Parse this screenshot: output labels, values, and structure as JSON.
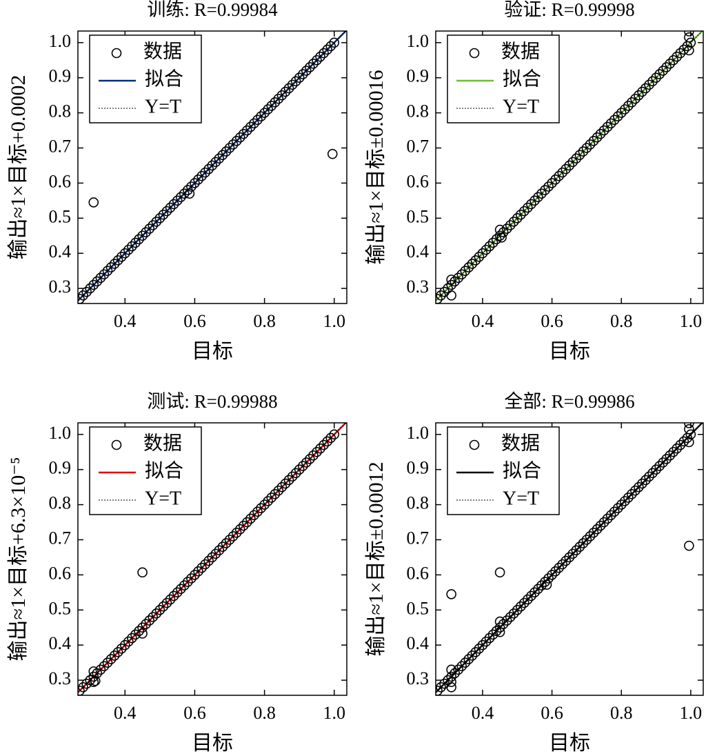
{
  "chart_data": [
    {
      "type": "scatter",
      "title": "训练: R=0.99984",
      "xlabel": "目标",
      "ylabel": "输出≈1×目标+0.0002",
      "xlim": [
        0.265,
        1.036
      ],
      "ylim": [
        0.257,
        1.033
      ],
      "xticks": [
        0.4,
        0.6,
        0.8,
        {
          "value": 1,
          "label": "1.0"
        }
      ],
      "yticks": [
        0.3,
        0.4,
        0.5,
        0.6,
        0.7,
        0.8,
        0.9,
        {
          "value": 1,
          "label": "1.0"
        }
      ],
      "series": [
        {
          "name": "数据",
          "color": "#000000",
          "marker": "circle",
          "x": [
            0.31,
            0.585,
            0.995,
            0.27,
            0.28,
            0.29,
            0.3,
            0.31,
            0.32,
            0.33,
            0.34,
            0.35,
            0.36,
            0.37,
            0.38,
            0.39,
            0.4,
            0.41,
            0.42,
            0.43,
            0.44,
            0.45,
            0.46,
            0.47,
            0.48,
            0.49,
            0.5,
            0.51,
            0.52,
            0.53,
            0.54,
            0.55,
            0.56,
            0.57,
            0.58,
            0.59,
            0.6,
            0.61,
            0.62,
            0.63,
            0.64,
            0.65,
            0.66,
            0.67,
            0.68,
            0.69,
            0.7,
            0.71,
            0.72,
            0.73,
            0.74,
            0.75,
            0.76,
            0.77,
            0.78,
            0.79,
            0.8,
            0.81,
            0.82,
            0.83,
            0.84,
            0.85,
            0.86,
            0.87,
            0.88,
            0.89,
            0.9,
            0.91,
            0.92,
            0.93,
            0.94,
            0.95,
            0.96,
            0.97,
            0.98,
            0.99,
            1.0
          ],
          "y": [
            0.545,
            0.57,
            0.683,
            0.27,
            0.28,
            0.29,
            0.3,
            0.31,
            0.32,
            0.33,
            0.34,
            0.35,
            0.36,
            0.37,
            0.38,
            0.39,
            0.4,
            0.41,
            0.42,
            0.43,
            0.44,
            0.45,
            0.46,
            0.47,
            0.48,
            0.49,
            0.5,
            0.51,
            0.52,
            0.53,
            0.54,
            0.55,
            0.56,
            0.57,
            0.58,
            0.59,
            0.6,
            0.61,
            0.62,
            0.63,
            0.64,
            0.65,
            0.66,
            0.67,
            0.68,
            0.69,
            0.7,
            0.71,
            0.72,
            0.73,
            0.74,
            0.75,
            0.76,
            0.77,
            0.78,
            0.79,
            0.8,
            0.81,
            0.82,
            0.83,
            0.84,
            0.85,
            0.86,
            0.87,
            0.88,
            0.89,
            0.9,
            0.91,
            0.92,
            0.93,
            0.94,
            0.95,
            0.96,
            0.97,
            0.98,
            0.99,
            1.0
          ]
        },
        {
          "name": "拟合",
          "color": "#002a80",
          "x": [
            0.265,
            1.036
          ],
          "y": [
            0.265,
            1.036
          ]
        },
        {
          "name": "Y=T",
          "color": "#000000",
          "dash": true,
          "x": [
            0.265,
            1.036
          ],
          "y": [
            0.265,
            1.036
          ]
        }
      ]
    },
    {
      "type": "scatter",
      "title": "验证: R=0.99998",
      "xlabel": "目标",
      "ylabel": "输出≈1×目标±0.00016",
      "xlim": [
        0.265,
        1.036
      ],
      "ylim": [
        0.257,
        1.033
      ],
      "xticks": [
        0.4,
        0.6,
        0.8,
        {
          "value": 1,
          "label": "1.0"
        }
      ],
      "yticks": [
        0.3,
        0.4,
        0.5,
        0.6,
        0.7,
        0.8,
        0.9,
        {
          "value": 1,
          "label": "1.0"
        }
      ],
      "series": [
        {
          "name": "数据",
          "color": "#000000",
          "marker": "circle",
          "x": [
            0.995,
            0.995,
            0.995,
            0.31,
            0.31,
            0.45,
            0.455,
            0.27,
            0.28,
            0.29,
            0.3,
            0.31,
            0.32,
            0.33,
            0.34,
            0.35,
            0.36,
            0.37,
            0.38,
            0.39,
            0.4,
            0.41,
            0.42,
            0.43,
            0.44,
            0.45,
            0.46,
            0.47,
            0.48,
            0.49,
            0.5,
            0.51,
            0.52,
            0.53,
            0.54,
            0.55,
            0.56,
            0.57,
            0.58,
            0.59,
            0.6,
            0.61,
            0.62,
            0.63,
            0.64,
            0.65,
            0.66,
            0.67,
            0.68,
            0.69,
            0.7,
            0.71,
            0.72,
            0.73,
            0.74,
            0.75,
            0.76,
            0.77,
            0.78,
            0.79,
            0.8,
            0.81,
            0.82,
            0.83,
            0.84,
            0.85,
            0.86,
            0.87,
            0.88,
            0.89,
            0.9,
            0.91,
            0.92,
            0.93,
            0.94,
            0.95,
            0.96,
            0.97,
            0.98,
            0.99,
            1.0
          ],
          "y": [
            1.032,
            1.015,
            0.978,
            0.325,
            0.28,
            0.467,
            0.445,
            0.27,
            0.28,
            0.29,
            0.3,
            0.31,
            0.32,
            0.33,
            0.34,
            0.35,
            0.36,
            0.37,
            0.38,
            0.39,
            0.4,
            0.41,
            0.42,
            0.43,
            0.44,
            0.45,
            0.46,
            0.47,
            0.48,
            0.49,
            0.5,
            0.51,
            0.52,
            0.53,
            0.54,
            0.55,
            0.56,
            0.57,
            0.58,
            0.59,
            0.6,
            0.61,
            0.62,
            0.63,
            0.64,
            0.65,
            0.66,
            0.67,
            0.68,
            0.69,
            0.7,
            0.71,
            0.72,
            0.73,
            0.74,
            0.75,
            0.76,
            0.77,
            0.78,
            0.79,
            0.8,
            0.81,
            0.82,
            0.83,
            0.84,
            0.85,
            0.86,
            0.87,
            0.88,
            0.89,
            0.9,
            0.91,
            0.92,
            0.93,
            0.94,
            0.95,
            0.96,
            0.97,
            0.98,
            0.99,
            1.0
          ]
        },
        {
          "name": "拟合",
          "color": "#6bbf2e",
          "x": [
            0.265,
            1.036
          ],
          "y": [
            0.265,
            1.036
          ]
        },
        {
          "name": "Y=T",
          "color": "#000000",
          "dash": true,
          "x": [
            0.265,
            1.036
          ],
          "y": [
            0.265,
            1.036
          ]
        }
      ]
    },
    {
      "type": "scatter",
      "title": "测试: R=0.99988",
      "xlabel": "目标",
      "ylabel": "输出≈1×目标+6.3×10⁻⁵",
      "xlim": [
        0.265,
        1.036
      ],
      "ylim": [
        0.257,
        1.033
      ],
      "xticks": [
        0.4,
        0.6,
        0.8,
        {
          "value": 1,
          "label": "1.0"
        }
      ],
      "yticks": [
        0.3,
        0.4,
        0.5,
        0.6,
        0.7,
        0.8,
        0.9,
        {
          "value": 1,
          "label": "1.0"
        }
      ],
      "series": [
        {
          "name": "数据",
          "color": "#000000",
          "marker": "circle",
          "x": [
            0.45,
            0.45,
            0.31,
            0.31,
            0.315,
            0.27,
            0.28,
            0.29,
            0.3,
            0.31,
            0.32,
            0.33,
            0.34,
            0.35,
            0.36,
            0.37,
            0.38,
            0.39,
            0.4,
            0.41,
            0.42,
            0.43,
            0.44,
            0.45,
            0.46,
            0.47,
            0.48,
            0.49,
            0.5,
            0.51,
            0.52,
            0.53,
            0.54,
            0.55,
            0.56,
            0.57,
            0.58,
            0.59,
            0.6,
            0.61,
            0.62,
            0.63,
            0.64,
            0.65,
            0.66,
            0.67,
            0.68,
            0.69,
            0.7,
            0.71,
            0.72,
            0.73,
            0.74,
            0.75,
            0.76,
            0.77,
            0.78,
            0.79,
            0.8,
            0.81,
            0.82,
            0.83,
            0.84,
            0.85,
            0.86,
            0.87,
            0.88,
            0.89,
            0.9,
            0.91,
            0.92,
            0.93,
            0.94,
            0.95,
            0.96,
            0.97,
            0.98,
            0.99,
            1.0
          ],
          "y": [
            0.607,
            0.433,
            0.325,
            0.295,
            0.298,
            0.27,
            0.28,
            0.29,
            0.3,
            0.31,
            0.32,
            0.33,
            0.34,
            0.35,
            0.36,
            0.37,
            0.38,
            0.39,
            0.4,
            0.41,
            0.42,
            0.43,
            0.44,
            0.45,
            0.46,
            0.47,
            0.48,
            0.49,
            0.5,
            0.51,
            0.52,
            0.53,
            0.54,
            0.55,
            0.56,
            0.57,
            0.58,
            0.59,
            0.6,
            0.61,
            0.62,
            0.63,
            0.64,
            0.65,
            0.66,
            0.67,
            0.68,
            0.69,
            0.7,
            0.71,
            0.72,
            0.73,
            0.74,
            0.75,
            0.76,
            0.77,
            0.78,
            0.79,
            0.8,
            0.81,
            0.82,
            0.83,
            0.84,
            0.85,
            0.86,
            0.87,
            0.88,
            0.89,
            0.9,
            0.91,
            0.92,
            0.93,
            0.94,
            0.95,
            0.96,
            0.97,
            0.98,
            0.99,
            1.0
          ]
        },
        {
          "name": "拟合",
          "color": "#e00000",
          "x": [
            0.265,
            1.036
          ],
          "y": [
            0.265,
            1.036
          ]
        },
        {
          "name": "Y=T",
          "color": "#000000",
          "dash": true,
          "x": [
            0.265,
            1.036
          ],
          "y": [
            0.265,
            1.036
          ]
        }
      ]
    },
    {
      "type": "scatter",
      "title": "全部: R=0.99986",
      "xlabel": "目标",
      "ylabel": "输出≈1×目标±0.00012",
      "xlim": [
        0.265,
        1.036
      ],
      "ylim": [
        0.257,
        1.033
      ],
      "xticks": [
        0.4,
        0.6,
        0.8,
        {
          "value": 1,
          "label": "1.0"
        }
      ],
      "yticks": [
        0.3,
        0.4,
        0.5,
        0.6,
        0.7,
        0.8,
        0.9,
        {
          "value": 1,
          "label": "1.0"
        }
      ],
      "series": [
        {
          "name": "数据",
          "color": "#000000",
          "marker": "circle",
          "x": [
            0.31,
            0.585,
            0.995,
            0.995,
            0.995,
            0.995,
            0.31,
            0.31,
            0.45,
            0.45,
            0.45,
            0.31,
            0.27,
            0.28,
            0.29,
            0.3,
            0.31,
            0.32,
            0.33,
            0.34,
            0.35,
            0.36,
            0.37,
            0.38,
            0.39,
            0.4,
            0.41,
            0.42,
            0.43,
            0.44,
            0.45,
            0.46,
            0.47,
            0.48,
            0.49,
            0.5,
            0.51,
            0.52,
            0.53,
            0.54,
            0.55,
            0.56,
            0.57,
            0.58,
            0.59,
            0.6,
            0.61,
            0.62,
            0.63,
            0.64,
            0.65,
            0.66,
            0.67,
            0.68,
            0.69,
            0.7,
            0.71,
            0.72,
            0.73,
            0.74,
            0.75,
            0.76,
            0.77,
            0.78,
            0.79,
            0.8,
            0.81,
            0.82,
            0.83,
            0.84,
            0.85,
            0.86,
            0.87,
            0.88,
            0.89,
            0.9,
            0.91,
            0.92,
            0.93,
            0.94,
            0.95,
            0.96,
            0.97,
            0.98,
            0.99,
            1.0
          ],
          "y": [
            0.545,
            0.572,
            0.683,
            1.032,
            1.015,
            0.978,
            0.33,
            0.28,
            0.467,
            0.437,
            0.607,
            0.295,
            0.27,
            0.28,
            0.29,
            0.3,
            0.31,
            0.32,
            0.33,
            0.34,
            0.35,
            0.36,
            0.37,
            0.38,
            0.39,
            0.4,
            0.41,
            0.42,
            0.43,
            0.44,
            0.45,
            0.46,
            0.47,
            0.48,
            0.49,
            0.5,
            0.51,
            0.52,
            0.53,
            0.54,
            0.55,
            0.56,
            0.57,
            0.58,
            0.59,
            0.6,
            0.61,
            0.62,
            0.63,
            0.64,
            0.65,
            0.66,
            0.67,
            0.68,
            0.69,
            0.7,
            0.71,
            0.72,
            0.73,
            0.74,
            0.75,
            0.76,
            0.77,
            0.78,
            0.79,
            0.8,
            0.81,
            0.82,
            0.83,
            0.84,
            0.85,
            0.86,
            0.87,
            0.88,
            0.89,
            0.9,
            0.91,
            0.92,
            0.93,
            0.94,
            0.95,
            0.96,
            0.97,
            0.98,
            0.99,
            1.0
          ]
        },
        {
          "name": "拟合",
          "color": "#000000",
          "x": [
            0.265,
            1.036
          ],
          "y": [
            0.265,
            1.036
          ]
        },
        {
          "name": "Y=T",
          "color": "#000000",
          "dash": true,
          "x": [
            0.265,
            1.036
          ],
          "y": [
            0.265,
            1.036
          ]
        }
      ]
    }
  ]
}
